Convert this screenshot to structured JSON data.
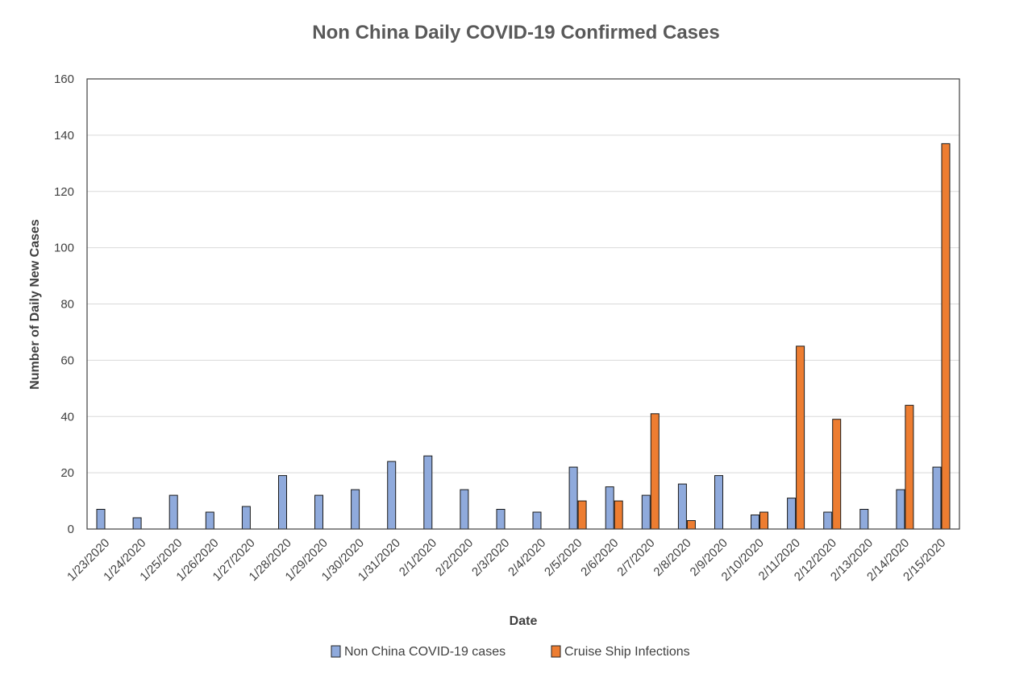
{
  "chart_data": {
    "type": "bar",
    "title": "Non China Daily COVID-19 Confirmed Cases",
    "xlabel": "Date",
    "ylabel": "Number of Daily New Cases",
    "ylim": [
      0,
      160
    ],
    "yticks": [
      0,
      20,
      40,
      60,
      80,
      100,
      120,
      140,
      160
    ],
    "grid": true,
    "legend_position": "bottom",
    "categories": [
      "1/23/2020",
      "1/24/2020",
      "1/25/2020",
      "1/26/2020",
      "1/27/2020",
      "1/28/2020",
      "1/29/2020",
      "1/30/2020",
      "1/31/2020",
      "2/1/2020",
      "2/2/2020",
      "2/3/2020",
      "2/4/2020",
      "2/5/2020",
      "2/6/2020",
      "2/7/2020",
      "2/8/2020",
      "2/9/2020",
      "2/10/2020",
      "2/11/2020",
      "2/12/2020",
      "2/13/2020",
      "2/14/2020",
      "2/15/2020"
    ],
    "series": [
      {
        "name": "Non China COVID-19 cases",
        "color": "#8faadc",
        "values": [
          7,
          4,
          12,
          6,
          8,
          19,
          12,
          14,
          24,
          26,
          14,
          7,
          6,
          22,
          15,
          12,
          16,
          19,
          5,
          11,
          6,
          7,
          14,
          22
        ]
      },
      {
        "name": "Cruise Ship Infections",
        "color": "#ed7d31",
        "values": [
          0,
          0,
          0,
          0,
          0,
          0,
          0,
          0,
          0,
          0,
          0,
          0,
          0,
          10,
          10,
          41,
          3,
          0,
          6,
          65,
          39,
          0,
          44,
          137
        ]
      }
    ]
  }
}
